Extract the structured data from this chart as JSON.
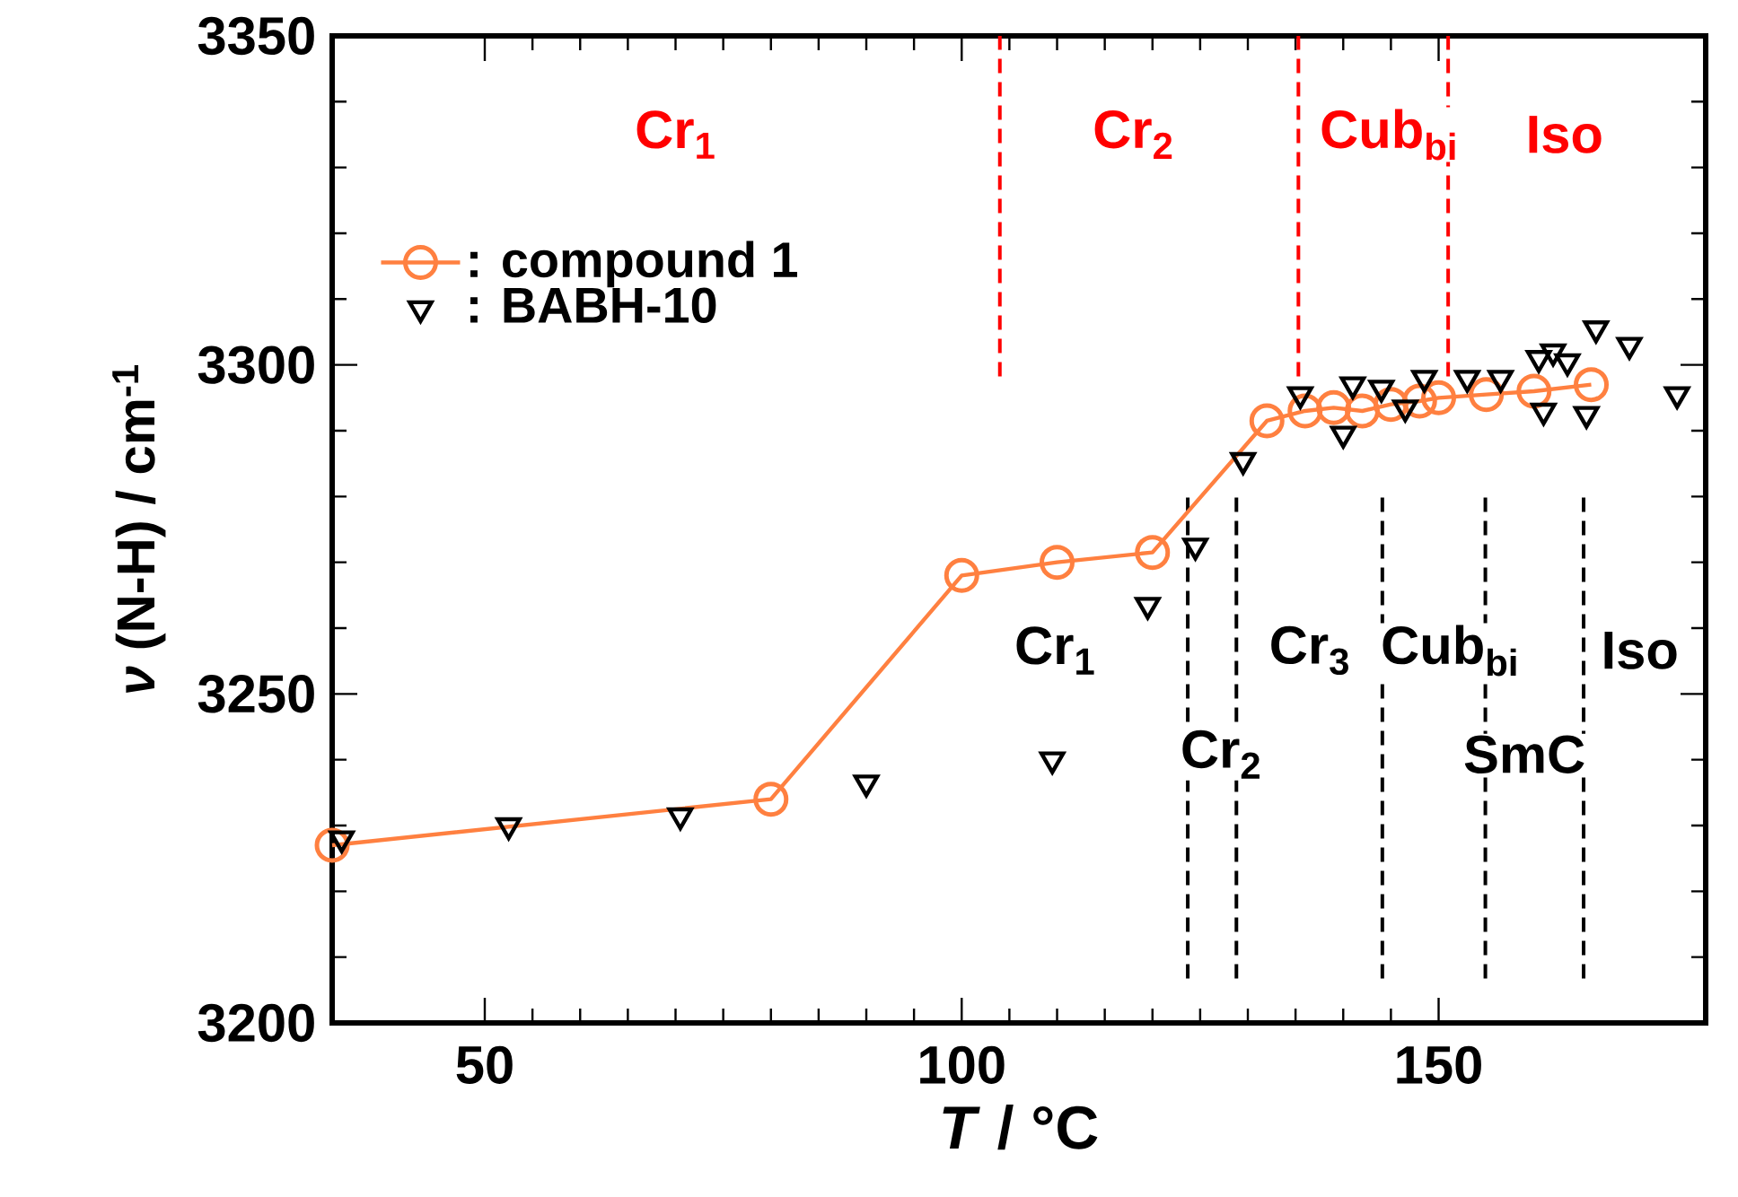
{
  "chart_data": {
    "type": "line",
    "xlabel": "*T* / °C",
    "ylabel": "*ν* (N-H) / cm$^{-1}$",
    "xlim": [
      34,
      178
    ],
    "ylim": [
      3200,
      3350
    ],
    "xticks": [
      50,
      100,
      150
    ],
    "yticks": [
      3200,
      3250,
      3300,
      3350
    ],
    "legend": "top left",
    "series": [
      {
        "name": ": compound 1",
        "marker": "circle",
        "color": "#ff8040",
        "x": [
          34,
          80,
          100,
          110,
          120,
          132,
          136,
          139,
          142,
          145,
          148,
          150,
          155,
          160,
          166
        ],
        "values": [
          3227,
          3234,
          3268,
          3270,
          3271.5,
          3291.5,
          3293,
          3293.5,
          3293,
          3294,
          3294.5,
          3295,
          3295.5,
          3296,
          3297
        ]
      },
      {
        "name": ": BABH-10",
        "type": "scatter",
        "marker": "triangle",
        "color": "#000000",
        "x": [
          35,
          52.5,
          70.5,
          90,
          109.5,
          119.5,
          124.5,
          129.5,
          135.5,
          140,
          141,
          144,
          146.5,
          148.5,
          153,
          156.5,
          160.5,
          161,
          162,
          163.5,
          165.5,
          166.5,
          170,
          175
        ],
        "values": [
          3228,
          3230,
          3231.5,
          3236.5,
          3240,
          3263.5,
          3272.5,
          3285.5,
          3295.5,
          3289.5,
          3297,
          3296.5,
          3293.5,
          3298,
          3298,
          3298,
          3301,
          3293,
          3302,
          3300.5,
          3292.5,
          3305.5,
          3303,
          3295.5
        ]
      }
    ],
    "ref_lines": [
      {
        "axis": "x",
        "value": 104,
        "color": "#ff0000",
        "line_style": "dashed"
      },
      {
        "axis": "x",
        "value": 135.3,
        "color": "#ff0000",
        "line_style": "dashed"
      },
      {
        "axis": "x",
        "value": 151,
        "color": "#ff0000",
        "line_style": "dashed"
      },
      {
        "axis": "x",
        "value": 123.7,
        "color": "#000000",
        "line_style": "dashed"
      },
      {
        "axis": "x",
        "value": 128.8,
        "color": "#000000",
        "line_style": "dashed"
      },
      {
        "axis": "x",
        "value": 144.1,
        "color": "#000000",
        "line_style": "dashed"
      },
      {
        "axis": "x",
        "value": 154.9,
        "color": "#000000",
        "line_style": "dashed"
      },
      {
        "axis": "x",
        "value": 165.2,
        "color": "#000000",
        "line_style": "dashed"
      }
    ],
    "annotations": [
      "Cr$_{1}$",
      "Cr$_{2}$",
      "Cub$_{bi}$",
      "Iso",
      "Cr$_{1}$",
      "Cr$_{2}$",
      "Cr$_{3}$",
      "Cub$_{bi}$",
      "SmC",
      "Iso"
    ]
  }
}
